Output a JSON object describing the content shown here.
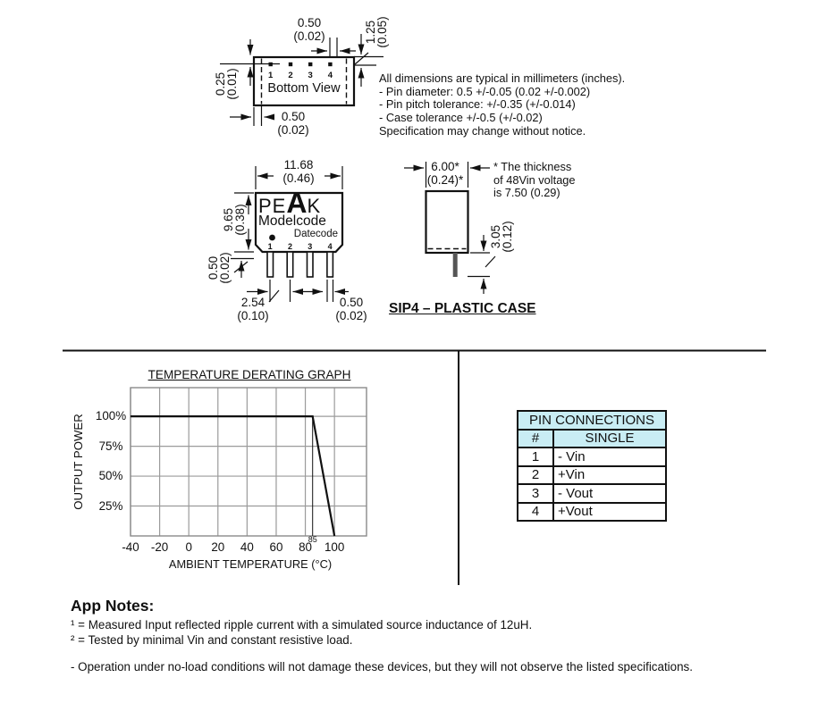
{
  "package_drawings": {
    "bottom_view": {
      "label": "Bottom View",
      "pin_numbers": [
        "1",
        "2",
        "3",
        "4"
      ],
      "dim_top": [
        "0.50",
        "(0.02)"
      ],
      "dim_right": [
        "1.25",
        "(0.05)"
      ],
      "dim_left": [
        "0.25",
        "(0.01)"
      ],
      "dim_bottom": [
        "0.50",
        "(0.02)"
      ]
    },
    "notes": [
      "All dimensions are typical in millimeters (inches).",
      "- Pin diameter: 0.5 +/-0.05 (0.02 +/-0.002)",
      "- Pin pitch tolerance: +/-0.35 (+/-0.014)",
      "- Case tolerance +/-0.5 (+/-0.02)",
      "Specification may change without notice."
    ],
    "front_view": {
      "logo": {
        "pe": "PE",
        "a": "A",
        "k": "K"
      },
      "modelcode": "Modelcode",
      "datecode": "Datecode",
      "pin_numbers": [
        "1",
        "2",
        "3",
        "4"
      ],
      "dim_width": [
        "11.68",
        "(0.46)"
      ],
      "dim_height": [
        "9.65",
        "(0.38)"
      ],
      "dim_standoff": [
        "0.50",
        "(0.02)"
      ],
      "dim_pitch": [
        "2.54",
        "(0.10)"
      ],
      "dim_pin": [
        "0.50",
        "(0.02)"
      ]
    },
    "side_view": {
      "dim_width": [
        "6.00*",
        "(0.24)*"
      ],
      "dim_pin_length": [
        "3.05",
        "(0.12)"
      ],
      "note_lines": [
        "* The thickness",
        "of 48Vin voltage",
        "is 7.50 (0.29)"
      ]
    },
    "caption": "SIP4 – PLASTIC CASE"
  },
  "chart_data": {
    "type": "line",
    "title": "TEMPERATURE DERATING GRAPH",
    "xlabel": "AMBIENT TEMPERATURE (°C)",
    "ylabel": "OUTPUT POWER",
    "x_ticks": [
      -40,
      -20,
      0,
      20,
      40,
      60,
      80,
      100
    ],
    "y_ticks": [
      {
        "value": 100,
        "label": "100%"
      },
      {
        "value": 75,
        "label": "75%"
      },
      {
        "value": 50,
        "label": "50%"
      },
      {
        "value": 25,
        "label": "25%"
      }
    ],
    "xlim": [
      -40,
      122
    ],
    "ylim": [
      0,
      124
    ],
    "grid": true,
    "legend": "none",
    "series": [
      {
        "name": "Output power derating vs ambient temperature",
        "points": [
          [
            -40,
            100
          ],
          [
            85,
            100
          ],
          [
            100,
            0
          ]
        ]
      }
    ],
    "annotations": [
      {
        "type": "vline",
        "x": 85,
        "label": "85"
      }
    ]
  },
  "pin_table": {
    "title": "PIN CONNECTIONS",
    "columns": [
      "#",
      "SINGLE"
    ],
    "rows": [
      [
        "1",
        "- Vin"
      ],
      [
        "2",
        "+Vin"
      ],
      [
        "3",
        "- Vout"
      ],
      [
        "4",
        "+Vout"
      ]
    ],
    "header_bg": "#c9edf4"
  },
  "app_notes": {
    "heading": "App Notes:",
    "notes": [
      "¹ = Measured Input reflected ripple current with a simulated source inductance of 12uH.",
      "² = Tested by minimal Vin and constant resistive load."
    ],
    "footer": "- Operation under no-load conditions will not damage these devices, but they will not observe the listed specifications."
  }
}
